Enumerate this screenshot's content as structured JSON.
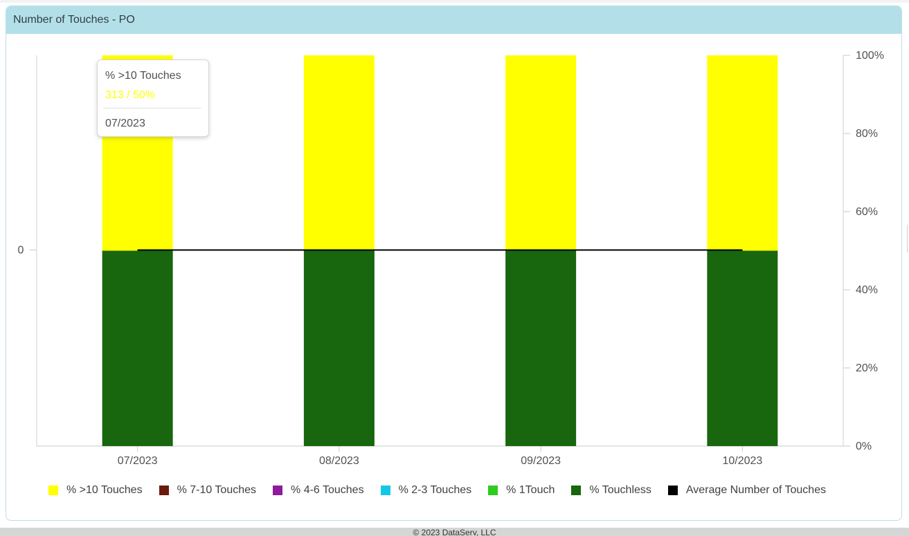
{
  "panel": {
    "title": "Number of Touches - PO"
  },
  "tooltip": {
    "series": "% >10 Touches",
    "value": "313 / 50%",
    "category": "07/2023"
  },
  "footer": {
    "text": "© 2023 DataServ, LLC"
  },
  "chart_data": {
    "type": "bar",
    "stacked": true,
    "categories": [
      "07/2023",
      "08/2023",
      "09/2023",
      "10/2023"
    ],
    "series": [
      {
        "name": "% >10 Touches",
        "color": "#ffff00",
        "values": [
          50,
          50,
          50,
          50
        ]
      },
      {
        "name": "% 7-10 Touches",
        "color": "#6b1a0e",
        "values": [
          0,
          0,
          0,
          0
        ]
      },
      {
        "name": "% 4-6 Touches",
        "color": "#8e1a9c",
        "values": [
          0,
          0,
          0,
          0
        ]
      },
      {
        "name": "% 2-3 Touches",
        "color": "#12c8e6",
        "values": [
          0,
          0,
          0,
          0
        ]
      },
      {
        "name": "% 1Touch",
        "color": "#2ecc1f",
        "values": [
          0,
          0,
          0,
          0
        ]
      },
      {
        "name": "% Touchless",
        "color": "#18660e",
        "values": [
          50,
          50,
          50,
          50
        ]
      }
    ],
    "line_series": {
      "name": "Average Number of Touches",
      "color": "#000000",
      "values": [
        0,
        0,
        0,
        0
      ]
    },
    "y_right": {
      "ticks": [
        "0%",
        "20%",
        "40%",
        "60%",
        "80%",
        "100%"
      ],
      "ylim": [
        0,
        100
      ]
    },
    "y_left": {
      "ticks": [
        "0"
      ]
    },
    "stack_order_bottom_to_top": [
      "% Touchless",
      "% 1Touch",
      "% 2-3 Touches",
      "% 4-6 Touches",
      "% 7-10 Touches",
      "% >10 Touches"
    ],
    "legend": "bottom"
  }
}
